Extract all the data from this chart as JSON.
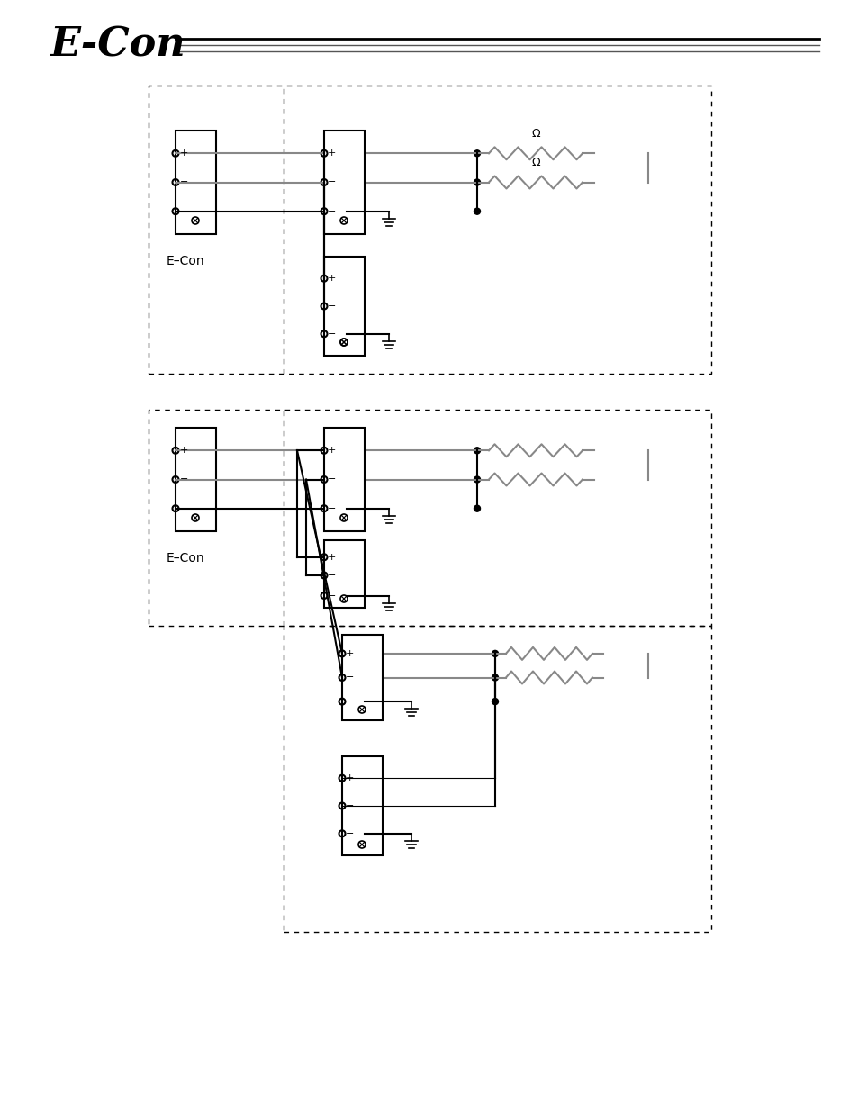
{
  "title": "E-Con",
  "title_fontsize": 32,
  "bg_color": "#ffffff",
  "line_color": "#000000",
  "gray_color": "#888888",
  "diagram1_label": "E–Con",
  "diagram2_label": "E–Con",
  "resistor_label": "Ω",
  "page_width": 9.54,
  "page_height": 12.35
}
